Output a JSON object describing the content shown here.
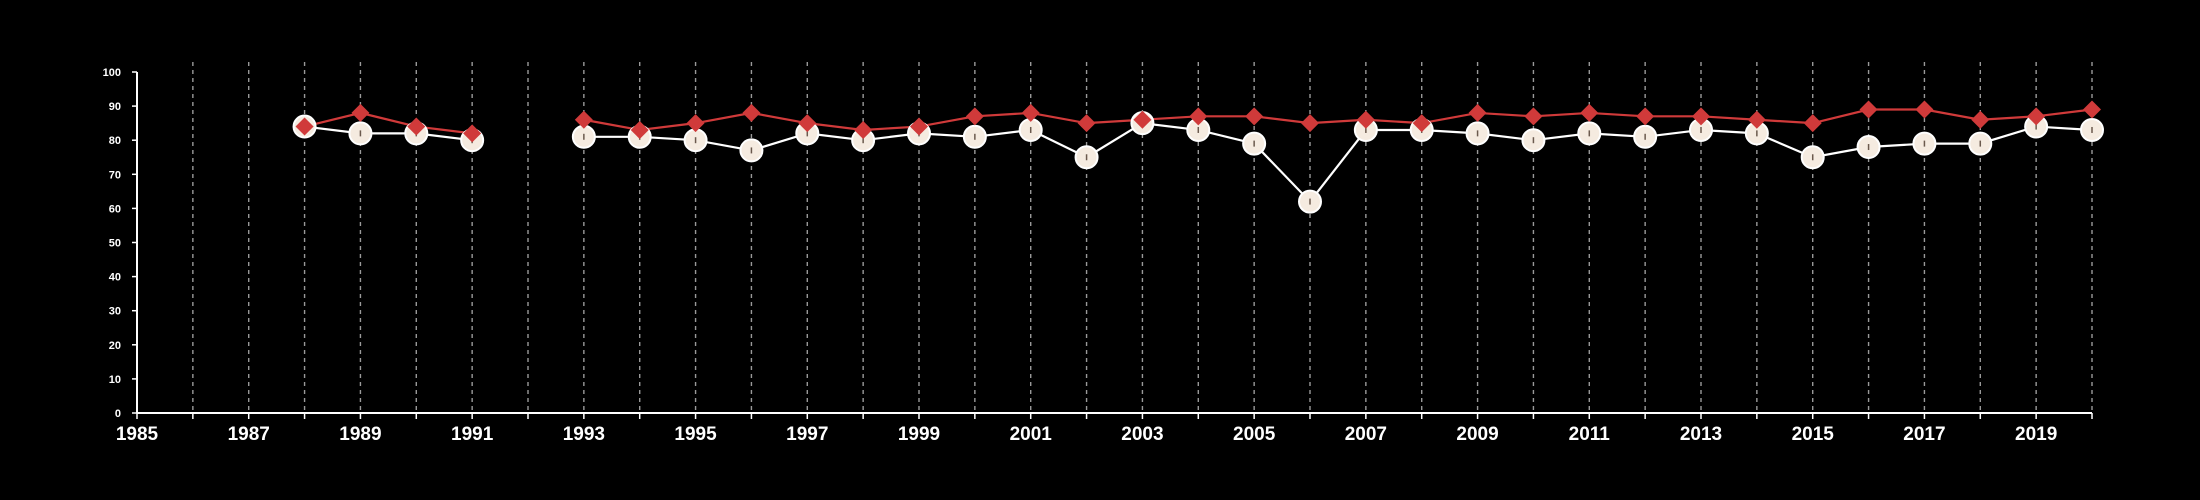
{
  "chart_data": {
    "type": "line",
    "title": "",
    "xlabel": "",
    "ylabel": "",
    "xlim": [
      1985,
      2020
    ],
    "ylim": [
      0,
      100
    ],
    "yticks": [
      "0",
      "10",
      "20",
      "30",
      "40",
      "50",
      "60",
      "70",
      "80",
      "90",
      "100"
    ],
    "xticks": [
      "1985",
      "1987",
      "1989",
      "1991",
      "1993",
      "1995",
      "1997",
      "1999",
      "2001",
      "2003",
      "2005",
      "2007",
      "2009",
      "2011",
      "2013",
      "2015",
      "2017",
      "2019"
    ],
    "grid": "vertical-dashed-yearly",
    "legend": "none",
    "x": [
      1988,
      1989,
      1990,
      1991,
      1993,
      1994,
      1995,
      1996,
      1997,
      1998,
      1999,
      2000,
      2001,
      2002,
      2003,
      2004,
      2005,
      2006,
      2007,
      2008,
      2009,
      2010,
      2011,
      2012,
      2013,
      2014,
      2015,
      2016,
      2017,
      2018,
      2019,
      2020
    ],
    "series": [
      {
        "marker": "circle",
        "color": "#f5ebe0",
        "line_color": "#ffffff",
        "values": [
          84,
          82,
          82,
          80,
          81,
          81,
          80,
          77,
          82,
          80,
          82,
          81,
          83,
          75,
          85,
          83,
          79,
          62,
          83,
          83,
          82,
          80,
          82,
          81,
          83,
          82,
          75,
          78,
          79,
          79,
          84,
          83
        ]
      },
      {
        "marker": "diamond",
        "color": "#d03a3a",
        "line_color": "#d03a3a",
        "values": [
          84,
          88,
          84,
          82,
          86,
          83,
          85,
          88,
          85,
          83,
          84,
          87,
          88,
          85,
          86,
          87,
          87,
          85,
          86,
          85,
          88,
          87,
          88,
          87,
          87,
          86,
          85,
          89,
          89,
          86,
          87,
          89
        ]
      }
    ]
  }
}
